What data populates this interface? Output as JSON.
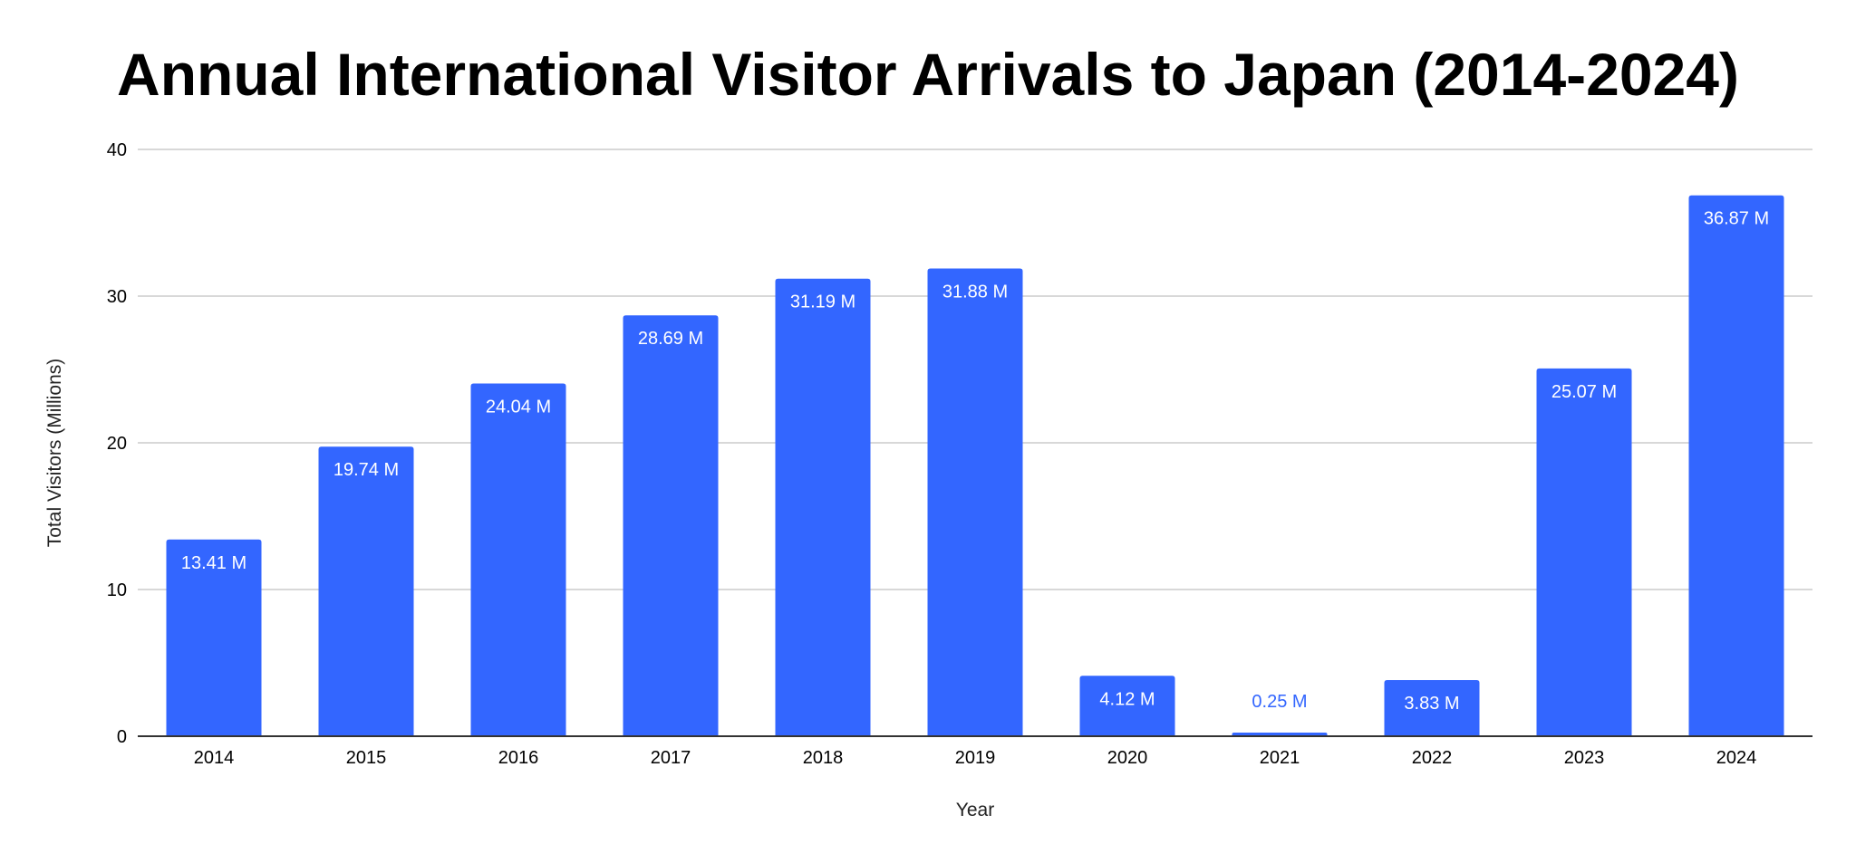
{
  "chart_data": {
    "type": "bar",
    "title": "Annual International Visitor Arrivals to Japan (2014-2024)",
    "xlabel": "Year",
    "ylabel": "Total Visitors (Millions)",
    "categories": [
      "2014",
      "2015",
      "2016",
      "2017",
      "2018",
      "2019",
      "2020",
      "2021",
      "2022",
      "2023",
      "2024"
    ],
    "values": [
      13.41,
      19.74,
      24.04,
      28.69,
      31.19,
      31.88,
      4.12,
      0.25,
      3.83,
      25.07,
      36.87
    ],
    "data_labels": [
      "13.41 M",
      "19.74 M",
      "24.04 M",
      "28.69 M",
      "31.19 M",
      "31.88 M",
      "4.12 M",
      "0.25 M",
      "3.83 M",
      "25.07 M",
      "36.87 M"
    ],
    "ylim": [
      0,
      40
    ],
    "yticks": [
      0,
      10,
      20,
      30,
      40
    ],
    "grid": true,
    "legend": "none",
    "bar_color": "#3366ff",
    "grid_color": "#cccccc",
    "axis_color": "#333333"
  }
}
